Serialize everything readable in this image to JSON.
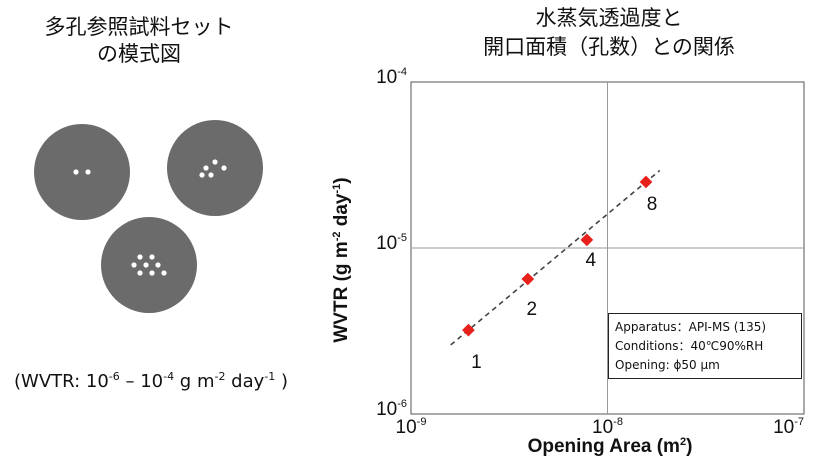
{
  "left_panel": {
    "title_line1": "多孔参照試料セット",
    "title_line2": "の模式図",
    "range_prefix": "(WVTR: 10",
    "range_exp1": "-6",
    "range_mid": " – 10",
    "range_exp2": "-4",
    "range_unit1": " g m",
    "range_exp3": "-2",
    "range_unit2": " day",
    "range_exp4": "-1",
    "range_suffix": " )",
    "disk_color": "#6b6b6b",
    "hole_color": "#ffffff"
  },
  "chart_data": {
    "type": "scatter",
    "title_line1": "水蒸気透過度と",
    "title_line2": "開口面積（孔数）との関係",
    "xlabel_main": "Opening Area (m",
    "xlabel_exp": "2",
    "xlabel_end": ")",
    "ylabel_main": "WVTR (g m",
    "ylabel_exp1": "-2",
    "ylabel_mid": " day",
    "ylabel_exp2": "-1",
    "ylabel_end": ")",
    "x_scale": "log",
    "y_scale": "log",
    "xlim": [
      1e-09,
      1e-07
    ],
    "ylim": [
      1e-06,
      0.0001
    ],
    "x_ticks": [
      {
        "base": "10",
        "exp": "-9"
      },
      {
        "base": "10",
        "exp": "-8"
      },
      {
        "base": "10",
        "exp": "-7"
      }
    ],
    "y_ticks": [
      {
        "base": "10",
        "exp": "-6"
      },
      {
        "base": "10",
        "exp": "-5"
      },
      {
        "base": "10",
        "exp": "-4"
      }
    ],
    "grid": true,
    "marker_color": "#e8201c",
    "fit_line": "dashed",
    "points": [
      {
        "label": "1",
        "x": 1.96e-09,
        "y": 3.2e-06
      },
      {
        "label": "2",
        "x": 3.93e-09,
        "y": 6.5e-06
      },
      {
        "label": "4",
        "x": 7.85e-09,
        "y": 1.12e-05
      },
      {
        "label": "8",
        "x": 1.57e-08,
        "y": 2.5e-05
      }
    ],
    "legend_box": {
      "line1": "Apparatus：API-MS (135)",
      "line2": "Conditions：40℃90%RH",
      "line3": "Opening: ϕ50 µm"
    }
  }
}
